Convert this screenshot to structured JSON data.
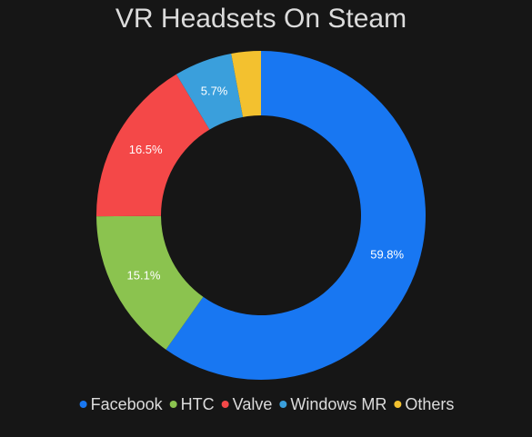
{
  "chart_data": {
    "type": "donut",
    "title": "VR Headsets On Steam",
    "categories": [
      "Facebook",
      "HTC",
      "Valve",
      "Windows MR",
      "Others"
    ],
    "values": [
      59.8,
      15.1,
      16.5,
      5.7,
      2.9
    ],
    "value_labels": [
      "59.8%",
      "15.1%",
      "16.5%",
      "5.7%",
      null
    ],
    "colors": [
      "#1877f2",
      "#8bc34f",
      "#f44848",
      "#3a9fdc",
      "#f3c12f"
    ],
    "legend": "bottom"
  }
}
